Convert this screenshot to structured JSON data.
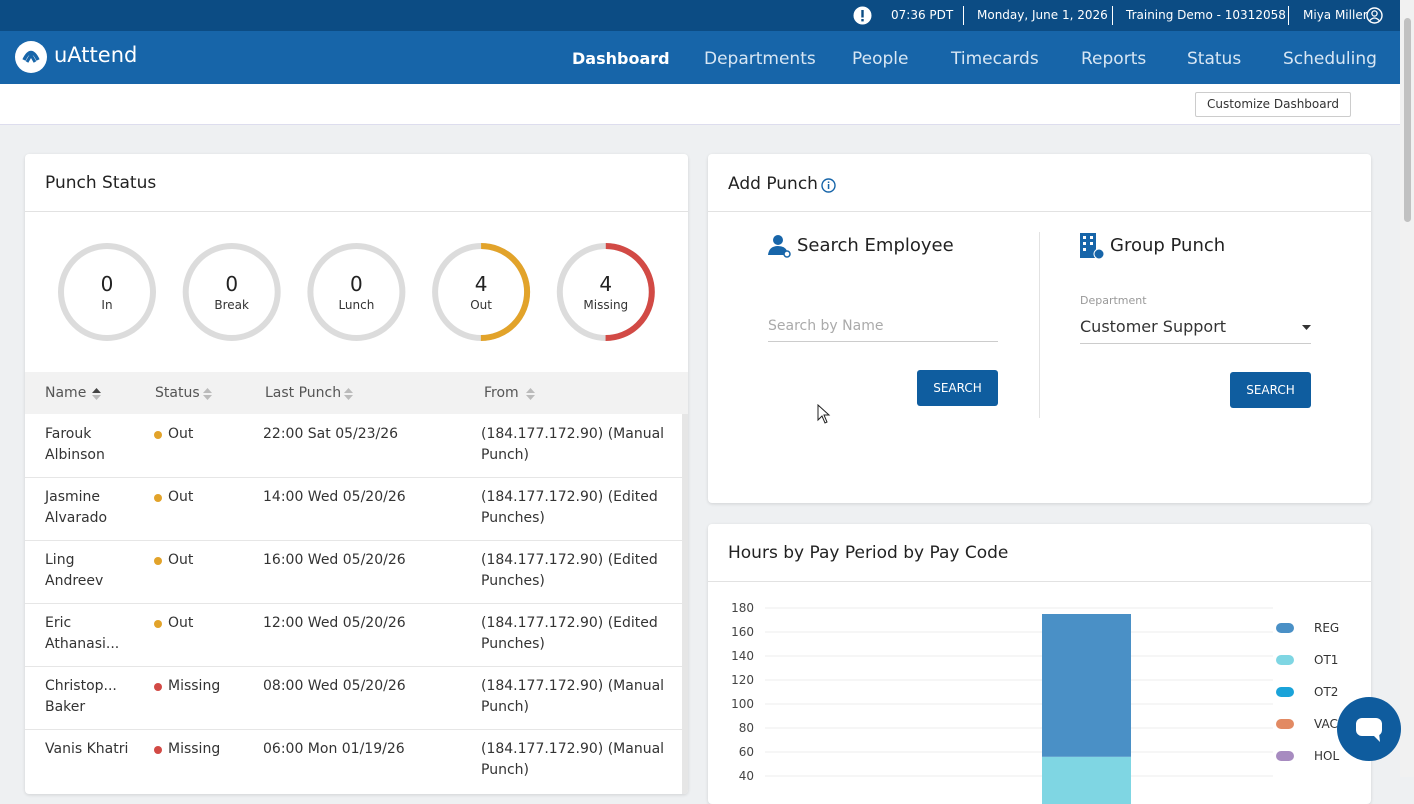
{
  "header": {
    "time": "07:36 PDT",
    "date": "Monday, June 1, 2026",
    "account": "Training Demo - 10312058",
    "user": "Miya Miller"
  },
  "nav": {
    "logo": "uAttend",
    "items": [
      "Dashboard",
      "Departments",
      "People",
      "Timecards",
      "Reports",
      "Status",
      "Scheduling"
    ]
  },
  "toolbar": {
    "button": "Customize Dashboard"
  },
  "punch_status": {
    "title": "Punch Status",
    "counts": [
      {
        "label": "In",
        "value": 0,
        "color": "#dcdcdc"
      },
      {
        "label": "Break",
        "value": 0,
        "color": "#dcdcdc"
      },
      {
        "label": "Lunch",
        "value": 0,
        "color": "#dcdcdc"
      },
      {
        "label": "Out",
        "value": 4,
        "color": "#e2a32a"
      },
      {
        "label": "Missing",
        "value": 4,
        "color": "#d24a45"
      }
    ],
    "status_colors": {
      "Out": "#e2a32a",
      "Missing": "#d24a45"
    },
    "columns": [
      "Name",
      "Status",
      "Last Punch",
      "From"
    ],
    "rows": [
      {
        "name": "Farouk Albinson",
        "status": "Out",
        "last_punch": "22:00 Sat 05/23/26",
        "from": "(184.177.172.90) (Manual Punch)"
      },
      {
        "name": "Jasmine Alvarado",
        "status": "Out",
        "last_punch": "14:00 Wed 05/20/26",
        "from": "(184.177.172.90) (Edited Punches)"
      },
      {
        "name": "Ling Andreev",
        "status": "Out",
        "last_punch": "16:00 Wed 05/20/26",
        "from": "(184.177.172.90) (Edited Punches)"
      },
      {
        "name": "Eric Athanasi...",
        "status": "Out",
        "last_punch": "12:00 Wed 05/20/26",
        "from": "(184.177.172.90) (Edited Punches)"
      },
      {
        "name": "Christop... Baker",
        "status": "Missing",
        "last_punch": "08:00 Wed 05/20/26",
        "from": "(184.177.172.90) (Manual Punch)"
      },
      {
        "name": "Vanis Khatri",
        "status": "Missing",
        "last_punch": "06:00 Mon 01/19/26",
        "from": "(184.177.172.90) (Manual Punch)"
      }
    ]
  },
  "add_punch": {
    "title": "Add Punch",
    "search": {
      "title": "Search Employee",
      "placeholder": "Search by Name",
      "button": "SEARCH"
    },
    "group": {
      "title": "Group Punch",
      "department_label": "Department",
      "department": "Customer Support",
      "button": "SEARCH"
    }
  },
  "chart": {
    "type": "bar",
    "title": "Hours by Pay Period by Pay Code",
    "categories": [
      null
    ],
    "series": [
      {
        "name": "OT1",
        "color": "#7fd6e3",
        "values": [
          56
        ]
      },
      {
        "name": "REG",
        "color": "#4a90c6",
        "values": [
          119
        ]
      },
      {
        "name": "OT2",
        "color": "#1aa3d9",
        "values": [
          0
        ]
      },
      {
        "name": "VAC",
        "color": "#e28a63",
        "values": [
          0
        ]
      },
      {
        "name": "HOL",
        "color": "#a78bc0",
        "values": [
          0
        ]
      }
    ],
    "legend_order": [
      "REG",
      "OT1",
      "OT2",
      "VAC",
      "HOL"
    ],
    "ylim": [
      0,
      180
    ],
    "yticks": [
      40,
      60,
      80,
      100,
      120,
      140,
      160,
      180
    ],
    "grid": true
  }
}
